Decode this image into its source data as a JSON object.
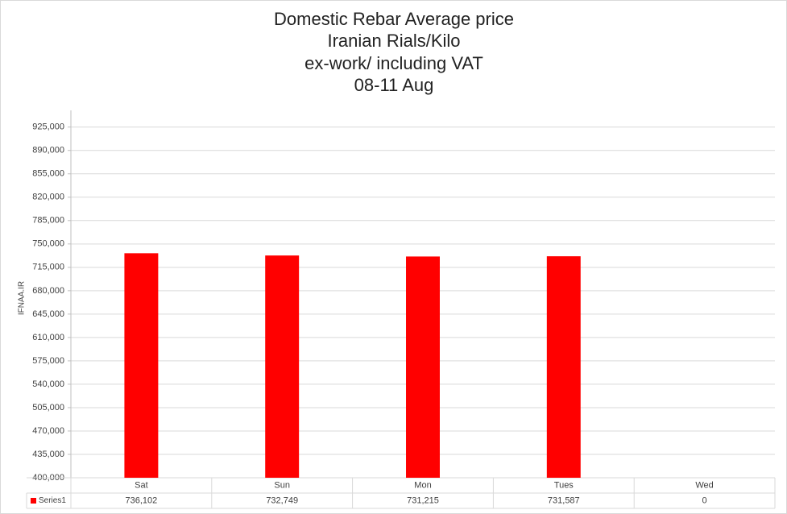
{
  "chart_data": {
    "type": "bar",
    "title": [
      "Domestic Rebar Average price",
      "Iranian Rials/Kilo",
      "ex-work/ including VAT",
      "08-11 Aug"
    ],
    "ylabel": "IFNAA.IR",
    "categories": [
      "Sat",
      "Sun",
      "Mon",
      "Tues",
      "Wed"
    ],
    "series": [
      {
        "name": "Series1",
        "color": "#ff0000",
        "values": [
          736102,
          732749,
          731215,
          731587,
          0
        ],
        "value_labels": [
          "736,102",
          "732,749",
          "731,215",
          "731,587",
          "0"
        ]
      }
    ],
    "ylim": [
      400000,
      950000
    ],
    "yticks": [
      {
        "value": 400000,
        "label": "400,000"
      },
      {
        "value": 435000,
        "label": "435,000"
      },
      {
        "value": 470000,
        "label": "470,000"
      },
      {
        "value": 505000,
        "label": "505,000"
      },
      {
        "value": 540000,
        "label": "540,000"
      },
      {
        "value": 575000,
        "label": "575,000"
      },
      {
        "value": 610000,
        "label": "610,000"
      },
      {
        "value": 645000,
        "label": "645,000"
      },
      {
        "value": 680000,
        "label": "680,000"
      },
      {
        "value": 715000,
        "label": "715,000"
      },
      {
        "value": 750000,
        "label": "750,000"
      },
      {
        "value": 785000,
        "label": "785,000"
      },
      {
        "value": 820000,
        "label": "820,000"
      },
      {
        "value": 855000,
        "label": "855,000"
      },
      {
        "value": 890000,
        "label": "890,000"
      },
      {
        "value": 925000,
        "label": "925,000"
      }
    ],
    "grid": true
  }
}
